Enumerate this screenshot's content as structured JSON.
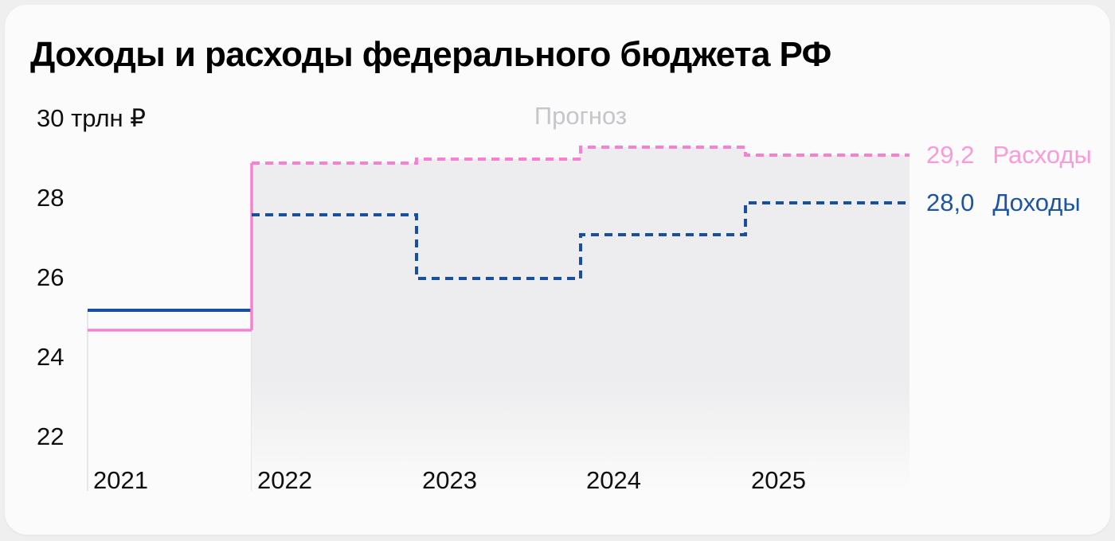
{
  "page": {
    "background": "#efeff0",
    "card_background": "#fbfbfb"
  },
  "chart_data": {
    "type": "step-line",
    "title": "Доходы и расходы федерального бюджета РФ",
    "y_top_label": "30 трлн ₽",
    "y_ticks": [
      "28",
      "26",
      "24",
      "22"
    ],
    "y_tick_values": [
      28,
      26,
      24,
      22
    ],
    "ylim": [
      21.2,
      30
    ],
    "x_labels": [
      "2021",
      "2022",
      "2023",
      "2024",
      "2025"
    ],
    "grid": "vertical lines at year boundaries, no horizontal gridlines",
    "legend_position": "right end of lines",
    "forecast": {
      "label": "Прогноз",
      "from_year": "2022",
      "label_color": "#c5c5ca",
      "shaded_fill_top": "#ededef",
      "shaded_fill_bottom": "#fbfbfb"
    },
    "grid_color": "#dfdfe2",
    "series": [
      {
        "name": "Расходы",
        "values": [
          24.8,
          29.0,
          29.1,
          29.4,
          29.2
        ],
        "end_value_label": "29,2",
        "line_color": "#f97fd2",
        "label_color": "#fb9ada",
        "style": "solid for 2021 (actual), dashed for 2022–2025 (forecast)"
      },
      {
        "name": "Доходы",
        "values": [
          25.3,
          27.7,
          26.1,
          27.2,
          28.0
        ],
        "end_value_label": "28,0",
        "line_color": "#17509e",
        "label_color": "#1d55a5",
        "style": "solid for 2021 (actual), dashed for 2022–2025 (forecast)"
      }
    ]
  }
}
